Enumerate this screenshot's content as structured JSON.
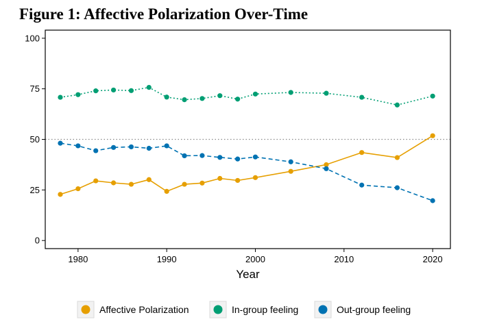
{
  "figure": {
    "title": "Figure 1: Affective Polarization Over-Time"
  },
  "chart_data": {
    "type": "line",
    "xlabel": "Year",
    "ylabel": "",
    "xlim": [
      1976.3,
      2022
    ],
    "ylim": [
      -4,
      104
    ],
    "xticks": [
      1980,
      1990,
      2000,
      2010,
      2020
    ],
    "yticks": [
      0,
      25,
      50,
      75,
      100
    ],
    "grid": false,
    "reference_line": {
      "y": 50,
      "style": "dotted",
      "color": "#888888"
    },
    "legend_position": "bottom",
    "series": [
      {
        "name": "Affective Polarization",
        "color": "#E69F00",
        "line_style": "solid",
        "x": [
          1978,
          1980,
          1982,
          1984,
          1986,
          1988,
          1990,
          1992,
          1994,
          1996,
          1998,
          2000,
          2004,
          2008,
          2012,
          2016,
          2020
        ],
        "y": [
          22.8,
          25.6,
          29.5,
          28.5,
          27.8,
          30.1,
          24.3,
          27.8,
          28.4,
          30.7,
          29.7,
          31.1,
          34.2,
          37.5,
          43.5,
          41.0,
          51.8
        ]
      },
      {
        "name": "In-group feeling",
        "color": "#009E73",
        "line_style": "dotted",
        "x": [
          1978,
          1980,
          1982,
          1984,
          1986,
          1988,
          1990,
          1992,
          1994,
          1996,
          1998,
          2000,
          2004,
          2008,
          2012,
          2016,
          2020
        ],
        "y": [
          70.8,
          72.1,
          74.0,
          74.4,
          74.1,
          75.7,
          70.9,
          69.6,
          70.2,
          71.6,
          69.9,
          72.4,
          73.2,
          72.8,
          70.8,
          67.0,
          71.4
        ]
      },
      {
        "name": "Out-group feeling",
        "color": "#0072B2",
        "line_style": "dashed",
        "x": [
          1978,
          1980,
          1982,
          1984,
          1986,
          1988,
          1990,
          1992,
          1994,
          1996,
          1998,
          2000,
          2004,
          2008,
          2012,
          2016,
          2020
        ],
        "y": [
          48.1,
          46.8,
          44.4,
          46.0,
          46.3,
          45.6,
          46.8,
          41.9,
          42.0,
          41.1,
          40.3,
          41.3,
          38.9,
          35.5,
          27.4,
          26.1,
          19.7
        ]
      }
    ]
  }
}
